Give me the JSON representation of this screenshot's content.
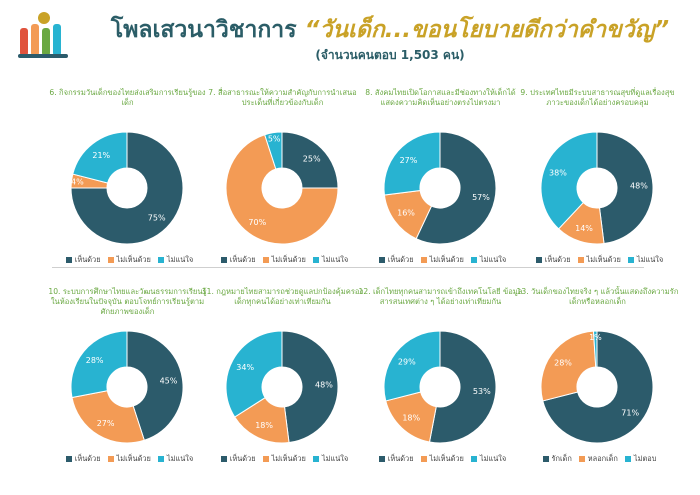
{
  "header": {
    "title_prefix": "โพลเสวนาวิชาการ",
    "title_highlight": "“วันเด็ก...ขอนโยบายดีกว่าคำขวัญ”",
    "subtitle": "(จำนวนคนตอบ 1,503 คน)"
  },
  "colors": {
    "agree": "#2c5b6b",
    "disagree": "#f39b55",
    "unsure": "#28b3d1"
  },
  "chart_data": [
    {
      "type": "pie",
      "title": "6. กิจกรรมวันเด็กของไทยส่งเสริมการเรียนรู้ของเด็ก",
      "categories": [
        "เห็นด้วย",
        "ไม่เห็นด้วย",
        "ไม่แน่ใจ"
      ],
      "values": [
        75,
        4,
        21
      ],
      "labels": [
        "75%",
        "4%",
        "21%"
      ],
      "colors": [
        "#2c5b6b",
        "#f39b55",
        "#28b3d1"
      ]
    },
    {
      "type": "pie",
      "title": "7. สื่อสาธารณะให้ความสำคัญกับการนำเสนอประเด็นที่เกี่ยวข้องกับเด็ก",
      "categories": [
        "เห็นด้วย",
        "ไม่เห็นด้วย",
        "ไม่แน่ใจ"
      ],
      "values": [
        25,
        70,
        5
      ],
      "labels": [
        "25%",
        "70%",
        "5%"
      ],
      "colors": [
        "#2c5b6b",
        "#f39b55",
        "#28b3d1"
      ]
    },
    {
      "type": "pie",
      "title": "8. สังคมไทยเปิดโอกาสและมีช่องทางให้เด็กได้แสดงความคิดเห็นอย่างตรงไปตรงมา",
      "categories": [
        "เห็นด้วย",
        "ไม่เห็นด้วย",
        "ไม่แน่ใจ"
      ],
      "values": [
        57,
        16,
        27
      ],
      "labels": [
        "57%",
        "16%",
        "27%"
      ],
      "colors": [
        "#2c5b6b",
        "#f39b55",
        "#28b3d1"
      ]
    },
    {
      "type": "pie",
      "title": "9. ประเทศไทยมีระบบสาธารณสุขที่ดูแลเรื่องสุขภาวะของเด็กได้อย่างครอบคลุม",
      "categories": [
        "เห็นด้วย",
        "ไม่เห็นด้วย",
        "ไม่แน่ใจ"
      ],
      "values": [
        48,
        14,
        38
      ],
      "labels": [
        "48%",
        "14%",
        "38%"
      ],
      "colors": [
        "#2c5b6b",
        "#f39b55",
        "#28b3d1"
      ]
    },
    {
      "type": "pie",
      "title": "10. ระบบการศึกษาไทยและวัฒนธรรมการเรียนรู้ในห้องเรียนในปัจจุบัน ตอบโจทย์การเรียนรู้ตามศักยภาพของเด็ก",
      "categories": [
        "เห็นด้วย",
        "ไม่เห็นด้วย",
        "ไม่แน่ใจ"
      ],
      "values": [
        45,
        27,
        28
      ],
      "labels": [
        "45%",
        "27%",
        "28%"
      ],
      "colors": [
        "#2c5b6b",
        "#f39b55",
        "#28b3d1"
      ]
    },
    {
      "type": "pie",
      "title": "11. กฎหมายไทยสามารถช่วยดูแลปกป้องคุ้มครองเด็กทุกคนได้อย่างเท่าเทียมกัน",
      "categories": [
        "เห็นด้วย",
        "ไม่เห็นด้วย",
        "ไม่แน่ใจ"
      ],
      "values": [
        48,
        18,
        34
      ],
      "labels": [
        "48%",
        "18%",
        "34%"
      ],
      "colors": [
        "#2c5b6b",
        "#f39b55",
        "#28b3d1"
      ]
    },
    {
      "type": "pie",
      "title": "12. เด็กไทยทุกคนสามารถเข้าถึงเทคโนโลยี ข้อมูล สารสนเทศต่าง ๆ ได้อย่างเท่าเทียมกัน",
      "categories": [
        "เห็นด้วย",
        "ไม่เห็นด้วย",
        "ไม่แน่ใจ"
      ],
      "values": [
        53,
        18,
        29
      ],
      "labels": [
        "53%",
        "18%",
        "29%"
      ],
      "colors": [
        "#2c5b6b",
        "#f39b55",
        "#28b3d1"
      ]
    },
    {
      "type": "pie",
      "title": "13. วันเด็กของไทยจริง ๆ แล้วนั้นแสดงถึงความรักเด็กหรือหลอกเด็ก",
      "categories": [
        "รักเด็ก",
        "หลอกเด็ก",
        "ไม่ตอบ"
      ],
      "values": [
        71,
        28,
        1
      ],
      "labels": [
        "71%",
        "28%",
        "1%"
      ],
      "colors": [
        "#2c5b6b",
        "#f39b55",
        "#28b3d1"
      ]
    }
  ]
}
